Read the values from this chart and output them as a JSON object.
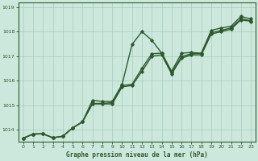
{
  "title": "Graphe pression niveau de la mer (hPa)",
  "background_color": "#cce8dc",
  "grid_color": "#a8ccbb",
  "line_color": "#2d5a2d",
  "xlim": [
    -0.5,
    23.5
  ],
  "ylim": [
    1013.5,
    1019.2
  ],
  "yticks": [
    1014,
    1015,
    1016,
    1017,
    1018,
    1019
  ],
  "xticks": [
    0,
    1,
    2,
    3,
    4,
    5,
    6,
    7,
    8,
    9,
    10,
    11,
    12,
    13,
    14,
    15,
    16,
    17,
    18,
    19,
    20,
    21,
    22,
    23
  ],
  "series": [
    {
      "y": [
        1013.65,
        1013.82,
        1013.83,
        1013.67,
        1013.73,
        1014.07,
        1014.32,
        1015.2,
        1015.15,
        1015.15,
        1015.85,
        1017.48,
        1018.0,
        1017.65,
        1017.12,
        1016.38,
        1017.12,
        1017.15,
        1017.12,
        1018.05,
        1018.15,
        1018.22,
        1018.62,
        1018.52
      ],
      "lw": 1.0
    },
    {
      "y": [
        1013.65,
        1013.82,
        1013.83,
        1013.67,
        1013.73,
        1014.07,
        1014.32,
        1015.07,
        1015.07,
        1015.1,
        1015.8,
        1015.85,
        1016.5,
        1017.1,
        1017.12,
        1016.32,
        1016.98,
        1017.1,
        1017.1,
        1017.95,
        1018.05,
        1018.15,
        1018.52,
        1018.45
      ],
      "lw": 1.0
    },
    {
      "y": [
        1013.65,
        1013.82,
        1013.83,
        1013.67,
        1013.73,
        1014.07,
        1014.32,
        1015.05,
        1015.05,
        1015.05,
        1015.75,
        1015.8,
        1016.38,
        1017.0,
        1017.05,
        1016.28,
        1016.92,
        1017.05,
        1017.05,
        1017.9,
        1018.0,
        1018.1,
        1018.48,
        1018.42
      ],
      "lw": 1.0
    }
  ]
}
